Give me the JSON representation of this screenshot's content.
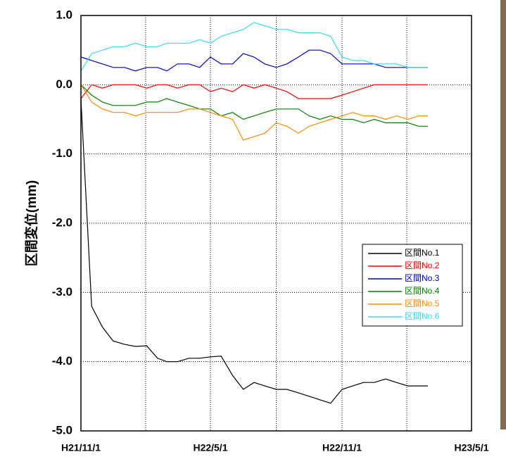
{
  "chart_data": {
    "type": "line",
    "y_label": "区間変位(mm)",
    "x": [
      "H21/11/1",
      "H21/11/16",
      "H21/12/1",
      "H21/12/16",
      "H22/1/1",
      "H22/1/16",
      "H22/2/1",
      "H22/2/16",
      "H22/3/1",
      "H22/3/16",
      "H22/4/1",
      "H22/4/16",
      "H22/5/1",
      "H22/5/16",
      "H22/6/1",
      "H22/6/16",
      "H22/7/1",
      "H22/7/16",
      "H22/8/1",
      "H22/8/16",
      "H22/9/1",
      "H22/9/16",
      "H22/10/1",
      "H22/10/16",
      "H22/11/1",
      "H22/11/16",
      "H22/12/1",
      "H22/12/16",
      "H23/1/1",
      "H23/1/16",
      "H23/2/1",
      "H23/2/16",
      "H23/3/1"
    ],
    "series": [
      {
        "name": "区間No.1",
        "color": "#000000",
        "values": [
          -0.2,
          -3.2,
          -3.5,
          -3.7,
          -3.75,
          -3.78,
          -3.77,
          -3.95,
          -4.0,
          -4.0,
          -3.95,
          -3.95,
          -3.93,
          -3.92,
          -4.2,
          -4.4,
          -4.3,
          -4.35,
          -4.4,
          -4.4,
          -4.45,
          -4.5,
          -4.55,
          -4.6,
          -4.4,
          -4.35,
          -4.3,
          -4.3,
          -4.25,
          -4.3,
          -4.35,
          -4.35,
          -4.35
        ]
      },
      {
        "name": "区間No.2",
        "color": "#ff0000",
        "values": [
          -0.2,
          0.0,
          -0.05,
          0.0,
          0.0,
          0.0,
          -0.05,
          0.0,
          0.0,
          -0.05,
          0.0,
          0.0,
          -0.1,
          -0.05,
          -0.1,
          0.0,
          -0.05,
          0.0,
          -0.05,
          -0.1,
          -0.2,
          -0.2,
          -0.2,
          -0.2,
          -0.15,
          -0.1,
          -0.05,
          0.0,
          0.0,
          0.0,
          0.0,
          0.0,
          0.0
        ]
      },
      {
        "name": "区間No.3",
        "color": "#0000cc",
        "values": [
          0.4,
          0.35,
          0.3,
          0.25,
          0.25,
          0.2,
          0.25,
          0.25,
          0.2,
          0.3,
          0.3,
          0.25,
          0.4,
          0.3,
          0.3,
          0.45,
          0.4,
          0.3,
          0.25,
          0.3,
          0.4,
          0.5,
          0.5,
          0.45,
          0.3,
          0.3,
          0.3,
          0.3,
          0.25,
          0.25,
          0.25,
          0.25,
          0.25
        ]
      },
      {
        "name": "区間No.4",
        "color": "#008000",
        "values": [
          0.0,
          -0.15,
          -0.25,
          -0.3,
          -0.3,
          -0.3,
          -0.25,
          -0.25,
          -0.2,
          -0.25,
          -0.3,
          -0.35,
          -0.35,
          -0.45,
          -0.4,
          -0.5,
          -0.45,
          -0.4,
          -0.35,
          -0.35,
          -0.35,
          -0.45,
          -0.5,
          -0.45,
          -0.5,
          -0.5,
          -0.55,
          -0.5,
          -0.55,
          -0.55,
          -0.55,
          -0.6,
          -0.6
        ]
      },
      {
        "name": "区間No.5",
        "color": "#ff8c00",
        "values": [
          0.0,
          -0.25,
          -0.35,
          -0.4,
          -0.4,
          -0.45,
          -0.4,
          -0.4,
          -0.4,
          -0.4,
          -0.35,
          -0.35,
          -0.4,
          -0.45,
          -0.5,
          -0.8,
          -0.75,
          -0.7,
          -0.55,
          -0.6,
          -0.7,
          -0.6,
          -0.55,
          -0.5,
          -0.45,
          -0.4,
          -0.45,
          -0.45,
          -0.5,
          -0.45,
          -0.5,
          -0.45,
          -0.45
        ]
      },
      {
        "name": "区間No.6",
        "color": "#33ddee",
        "values": [
          0.2,
          0.45,
          0.5,
          0.55,
          0.55,
          0.6,
          0.55,
          0.55,
          0.6,
          0.6,
          0.6,
          0.65,
          0.6,
          0.7,
          0.75,
          0.8,
          0.9,
          0.85,
          0.8,
          0.8,
          0.75,
          0.75,
          0.75,
          0.7,
          0.4,
          0.35,
          0.35,
          0.3,
          0.3,
          0.3,
          0.25,
          0.25,
          0.25
        ]
      }
    ],
    "xlim": [
      "H21/11/1",
      "H23/5/1"
    ],
    "xticks": [
      "H21/11/1",
      "H22/5/1",
      "H22/11/1",
      "H23/5/1"
    ],
    "ylim": [
      -5,
      1
    ],
    "yticks": [
      {
        "value": 1,
        "label": "1.0"
      },
      {
        "value": 0,
        "label": "0.0"
      },
      {
        "value": -1,
        "label": "-1.0"
      },
      {
        "value": -2,
        "label": "-2.0"
      },
      {
        "value": -3,
        "label": "-3.0"
      },
      {
        "value": -4,
        "label": "-4.0"
      },
      {
        "value": -5,
        "label": "-5.0"
      }
    ],
    "grid": true,
    "legend": "center right"
  }
}
